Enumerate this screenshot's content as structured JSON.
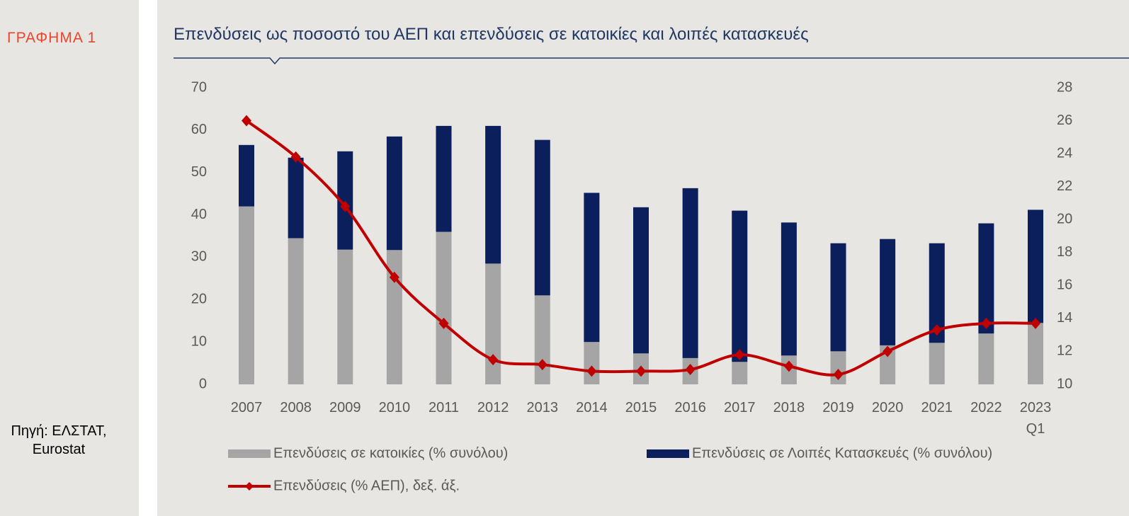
{
  "figure_label": "ΓΡΑΦΗΜΑ 1",
  "source": "Πηγή: ΕΛΣΤΑΤ, Eurostat",
  "chart_data": {
    "type": "bar",
    "stacked": true,
    "title": "Επενδύσεις ως ποσοστό του ΑΕΠ και επενδύσεις σε κατοικίες και λοιπές κατασκευές",
    "categories": [
      "2007",
      "2008",
      "2009",
      "2010",
      "2011",
      "2012",
      "2013",
      "2014",
      "2015",
      "2016",
      "2017",
      "2018",
      "2019",
      "2020",
      "2021",
      "2022",
      "2023 Q1"
    ],
    "series": [
      {
        "name": "Επενδύσεις σε κατοικίες (% συνόλου)",
        "type": "bar",
        "color": "#a5a5a5",
        "values": [
          42,
          34.5,
          31.8,
          31.7,
          36,
          28.5,
          21,
          10,
          7.3,
          6.2,
          5.3,
          6.8,
          7.8,
          9.2,
          9.8,
          12,
          14.5
        ]
      },
      {
        "name": "Επενδύσεις σε Λοιπές Κατασκευές (% συνόλου)",
        "type": "bar",
        "color": "#0b1f5c",
        "values": [
          14.5,
          19,
          23.2,
          26.8,
          25,
          32.5,
          36.7,
          35.2,
          34.5,
          40.1,
          35.7,
          31.4,
          25.5,
          25.1,
          23.5,
          26,
          26.7
        ]
      },
      {
        "name": "Επενδύσεις (% ΑΕΠ), δεξ. άξ.",
        "type": "line",
        "axis": "y2",
        "color": "#c00000",
        "values": [
          26.0,
          23.8,
          20.8,
          16.5,
          13.7,
          11.5,
          11.2,
          10.8,
          10.8,
          10.9,
          11.8,
          11.1,
          10.6,
          12.0,
          13.3,
          13.7,
          13.7
        ]
      }
    ],
    "ylim": [
      0,
      70
    ],
    "yticks": [
      0,
      10,
      20,
      30,
      40,
      50,
      60,
      70
    ],
    "y2lim": [
      10,
      28
    ],
    "y2ticks": [
      10,
      12,
      14,
      16,
      18,
      20,
      22,
      24,
      26,
      28
    ],
    "grid": false
  }
}
